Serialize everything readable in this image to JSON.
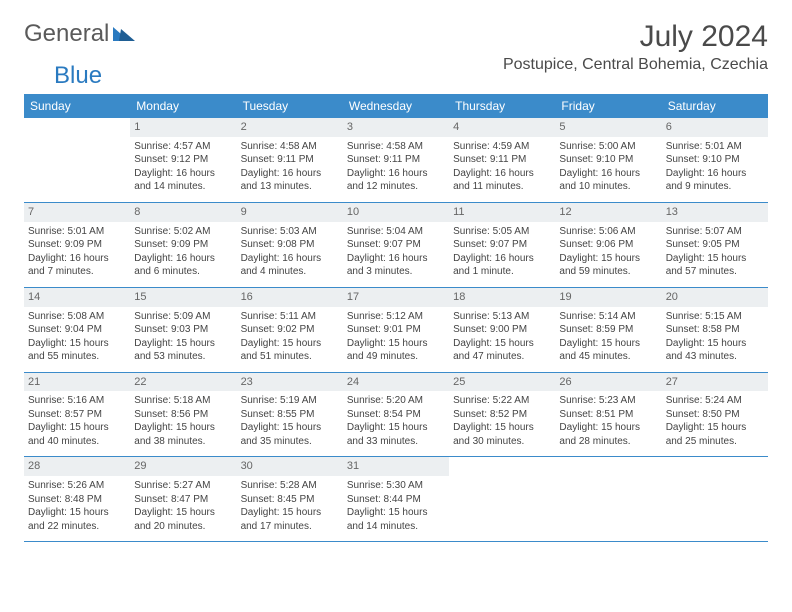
{
  "brand": {
    "part1": "General",
    "part2": "Blue"
  },
  "title": "July 2024",
  "location": "Postupice, Central Bohemia, Czechia",
  "colors": {
    "header_bg": "#3b8bca",
    "header_text": "#ffffff",
    "daynum_bg": "#eceff1",
    "daynum_text": "#666666",
    "body_text": "#444444",
    "brand_gray": "#5a5a5a",
    "brand_blue": "#2a7ac0"
  },
  "weekdays": [
    "Sunday",
    "Monday",
    "Tuesday",
    "Wednesday",
    "Thursday",
    "Friday",
    "Saturday"
  ],
  "weeks": [
    [
      {
        "day": "",
        "lines": [
          "",
          "",
          "",
          ""
        ]
      },
      {
        "day": "1",
        "lines": [
          "Sunrise: 4:57 AM",
          "Sunset: 9:12 PM",
          "Daylight: 16 hours",
          "and 14 minutes."
        ]
      },
      {
        "day": "2",
        "lines": [
          "Sunrise: 4:58 AM",
          "Sunset: 9:11 PM",
          "Daylight: 16 hours",
          "and 13 minutes."
        ]
      },
      {
        "day": "3",
        "lines": [
          "Sunrise: 4:58 AM",
          "Sunset: 9:11 PM",
          "Daylight: 16 hours",
          "and 12 minutes."
        ]
      },
      {
        "day": "4",
        "lines": [
          "Sunrise: 4:59 AM",
          "Sunset: 9:11 PM",
          "Daylight: 16 hours",
          "and 11 minutes."
        ]
      },
      {
        "day": "5",
        "lines": [
          "Sunrise: 5:00 AM",
          "Sunset: 9:10 PM",
          "Daylight: 16 hours",
          "and 10 minutes."
        ]
      },
      {
        "day": "6",
        "lines": [
          "Sunrise: 5:01 AM",
          "Sunset: 9:10 PM",
          "Daylight: 16 hours",
          "and 9 minutes."
        ]
      }
    ],
    [
      {
        "day": "7",
        "lines": [
          "Sunrise: 5:01 AM",
          "Sunset: 9:09 PM",
          "Daylight: 16 hours",
          "and 7 minutes."
        ]
      },
      {
        "day": "8",
        "lines": [
          "Sunrise: 5:02 AM",
          "Sunset: 9:09 PM",
          "Daylight: 16 hours",
          "and 6 minutes."
        ]
      },
      {
        "day": "9",
        "lines": [
          "Sunrise: 5:03 AM",
          "Sunset: 9:08 PM",
          "Daylight: 16 hours",
          "and 4 minutes."
        ]
      },
      {
        "day": "10",
        "lines": [
          "Sunrise: 5:04 AM",
          "Sunset: 9:07 PM",
          "Daylight: 16 hours",
          "and 3 minutes."
        ]
      },
      {
        "day": "11",
        "lines": [
          "Sunrise: 5:05 AM",
          "Sunset: 9:07 PM",
          "Daylight: 16 hours",
          "and 1 minute."
        ]
      },
      {
        "day": "12",
        "lines": [
          "Sunrise: 5:06 AM",
          "Sunset: 9:06 PM",
          "Daylight: 15 hours",
          "and 59 minutes."
        ]
      },
      {
        "day": "13",
        "lines": [
          "Sunrise: 5:07 AM",
          "Sunset: 9:05 PM",
          "Daylight: 15 hours",
          "and 57 minutes."
        ]
      }
    ],
    [
      {
        "day": "14",
        "lines": [
          "Sunrise: 5:08 AM",
          "Sunset: 9:04 PM",
          "Daylight: 15 hours",
          "and 55 minutes."
        ]
      },
      {
        "day": "15",
        "lines": [
          "Sunrise: 5:09 AM",
          "Sunset: 9:03 PM",
          "Daylight: 15 hours",
          "and 53 minutes."
        ]
      },
      {
        "day": "16",
        "lines": [
          "Sunrise: 5:11 AM",
          "Sunset: 9:02 PM",
          "Daylight: 15 hours",
          "and 51 minutes."
        ]
      },
      {
        "day": "17",
        "lines": [
          "Sunrise: 5:12 AM",
          "Sunset: 9:01 PM",
          "Daylight: 15 hours",
          "and 49 minutes."
        ]
      },
      {
        "day": "18",
        "lines": [
          "Sunrise: 5:13 AM",
          "Sunset: 9:00 PM",
          "Daylight: 15 hours",
          "and 47 minutes."
        ]
      },
      {
        "day": "19",
        "lines": [
          "Sunrise: 5:14 AM",
          "Sunset: 8:59 PM",
          "Daylight: 15 hours",
          "and 45 minutes."
        ]
      },
      {
        "day": "20",
        "lines": [
          "Sunrise: 5:15 AM",
          "Sunset: 8:58 PM",
          "Daylight: 15 hours",
          "and 43 minutes."
        ]
      }
    ],
    [
      {
        "day": "21",
        "lines": [
          "Sunrise: 5:16 AM",
          "Sunset: 8:57 PM",
          "Daylight: 15 hours",
          "and 40 minutes."
        ]
      },
      {
        "day": "22",
        "lines": [
          "Sunrise: 5:18 AM",
          "Sunset: 8:56 PM",
          "Daylight: 15 hours",
          "and 38 minutes."
        ]
      },
      {
        "day": "23",
        "lines": [
          "Sunrise: 5:19 AM",
          "Sunset: 8:55 PM",
          "Daylight: 15 hours",
          "and 35 minutes."
        ]
      },
      {
        "day": "24",
        "lines": [
          "Sunrise: 5:20 AM",
          "Sunset: 8:54 PM",
          "Daylight: 15 hours",
          "and 33 minutes."
        ]
      },
      {
        "day": "25",
        "lines": [
          "Sunrise: 5:22 AM",
          "Sunset: 8:52 PM",
          "Daylight: 15 hours",
          "and 30 minutes."
        ]
      },
      {
        "day": "26",
        "lines": [
          "Sunrise: 5:23 AM",
          "Sunset: 8:51 PM",
          "Daylight: 15 hours",
          "and 28 minutes."
        ]
      },
      {
        "day": "27",
        "lines": [
          "Sunrise: 5:24 AM",
          "Sunset: 8:50 PM",
          "Daylight: 15 hours",
          "and 25 minutes."
        ]
      }
    ],
    [
      {
        "day": "28",
        "lines": [
          "Sunrise: 5:26 AM",
          "Sunset: 8:48 PM",
          "Daylight: 15 hours",
          "and 22 minutes."
        ]
      },
      {
        "day": "29",
        "lines": [
          "Sunrise: 5:27 AM",
          "Sunset: 8:47 PM",
          "Daylight: 15 hours",
          "and 20 minutes."
        ]
      },
      {
        "day": "30",
        "lines": [
          "Sunrise: 5:28 AM",
          "Sunset: 8:45 PM",
          "Daylight: 15 hours",
          "and 17 minutes."
        ]
      },
      {
        "day": "31",
        "lines": [
          "Sunrise: 5:30 AM",
          "Sunset: 8:44 PM",
          "Daylight: 15 hours",
          "and 14 minutes."
        ]
      },
      {
        "day": "",
        "lines": [
          "",
          "",
          "",
          ""
        ]
      },
      {
        "day": "",
        "lines": [
          "",
          "",
          "",
          ""
        ]
      },
      {
        "day": "",
        "lines": [
          "",
          "",
          "",
          ""
        ]
      }
    ]
  ]
}
